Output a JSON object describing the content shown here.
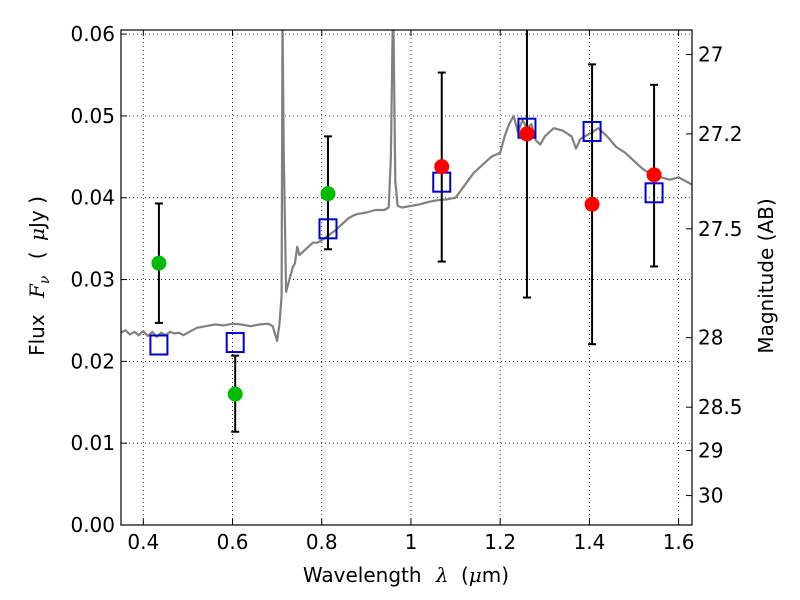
{
  "chart_data": {
    "type": "scatter",
    "xlabel": "Wavelength",
    "xlabel_symbol": "λ",
    "xlabel_unit_open": "(",
    "xlabel_unit_mu": "μ",
    "xlabel_unit_rest": "m)",
    "ylabel": "Flux",
    "ylabel_symbol": "F",
    "ylabel_symbol_sub": "ν",
    "ylabel_unit_open": "(",
    "ylabel_unit_mu": "μ",
    "ylabel_unit_rest": "Jy )",
    "y2label": "Magnitude (AB)",
    "xlim": [
      0.35,
      1.63
    ],
    "ylim": [
      0.0,
      0.0605
    ],
    "xticks": [
      0.4,
      0.6,
      0.8,
      1.0,
      1.2,
      1.4,
      1.6
    ],
    "xtick_labels": [
      "0.4",
      "0.6",
      "0.8",
      "1",
      "1.2",
      "1.4",
      "1.6"
    ],
    "yticks": [
      0.0,
      0.01,
      0.02,
      0.03,
      0.04,
      0.05,
      0.06
    ],
    "ytick_labels": [
      "0.00",
      "0.01",
      "0.02",
      "0.03",
      "0.04",
      "0.05",
      "0.06"
    ],
    "y2_ticks": [
      {
        "label": "27",
        "flux": 0.0575
      },
      {
        "label": "27.2",
        "flux": 0.0478
      },
      {
        "label": "27.5",
        "flux": 0.0362
      },
      {
        "label": "28",
        "flux": 0.0229
      },
      {
        "label": "28.5",
        "flux": 0.0144
      },
      {
        "label": "29",
        "flux": 0.0091
      },
      {
        "label": "30",
        "flux": 0.0036
      }
    ],
    "grid": true,
    "colors": {
      "template": "#808080",
      "green": "#00bb00",
      "red": "#ff0000",
      "model_box": "#0000cc",
      "errorbar": "#000000"
    },
    "series": [
      {
        "kind": "green-points",
        "points": [
          {
            "x": 0.435,
            "y": 0.032,
            "yerr_low": 0.0247,
            "yerr_high": 0.0393
          },
          {
            "x": 0.606,
            "y": 0.016,
            "yerr_low": 0.0114,
            "yerr_high": 0.0207
          },
          {
            "x": 0.814,
            "y": 0.0405,
            "yerr_low": 0.0337,
            "yerr_high": 0.0475
          }
        ]
      },
      {
        "kind": "red-points",
        "points": [
          {
            "x": 1.069,
            "y": 0.0438,
            "yerr_low": 0.0322,
            "yerr_high": 0.0553
          },
          {
            "x": 1.26,
            "y": 0.0478,
            "yerr_low": 0.0278,
            "yerr_high": 0.0605
          },
          {
            "x": 1.406,
            "y": 0.0392,
            "yerr_low": 0.0221,
            "yerr_high": 0.0563
          },
          {
            "x": 1.545,
            "y": 0.0428,
            "yerr_low": 0.0316,
            "yerr_high": 0.0538
          }
        ]
      },
      {
        "kind": "model-boxes",
        "points": [
          {
            "x": 0.435,
            "y": 0.022
          },
          {
            "x": 0.606,
            "y": 0.0223
          },
          {
            "x": 0.814,
            "y": 0.0362
          },
          {
            "x": 1.069,
            "y": 0.0419
          },
          {
            "x": 1.26,
            "y": 0.0485
          },
          {
            "x": 1.406,
            "y": 0.0481
          },
          {
            "x": 1.545,
            "y": 0.0406
          }
        ]
      },
      {
        "kind": "template-spectrum",
        "x": [
          0.35,
          0.36,
          0.37,
          0.38,
          0.39,
          0.4,
          0.41,
          0.42,
          0.43,
          0.44,
          0.45,
          0.46,
          0.47,
          0.48,
          0.49,
          0.5,
          0.52,
          0.54,
          0.56,
          0.58,
          0.6,
          0.62,
          0.64,
          0.66,
          0.68,
          0.69,
          0.7,
          0.705,
          0.71,
          0.712,
          0.715,
          0.72,
          0.725,
          0.73,
          0.735,
          0.74,
          0.745,
          0.75,
          0.76,
          0.77,
          0.78,
          0.79,
          0.8,
          0.81,
          0.82,
          0.83,
          0.84,
          0.85,
          0.86,
          0.87,
          0.88,
          0.9,
          0.92,
          0.94,
          0.95,
          0.955,
          0.96,
          0.965,
          0.97,
          0.98,
          1.0,
          1.02,
          1.04,
          1.06,
          1.08,
          1.1,
          1.12,
          1.14,
          1.16,
          1.18,
          1.2,
          1.21,
          1.22,
          1.23,
          1.24,
          1.25,
          1.26,
          1.27,
          1.28,
          1.29,
          1.3,
          1.32,
          1.34,
          1.36,
          1.37,
          1.38,
          1.4,
          1.42,
          1.44,
          1.46,
          1.48,
          1.5,
          1.52,
          1.54,
          1.56,
          1.58,
          1.6,
          1.63
        ],
        "y": [
          0.0235,
          0.0238,
          0.0233,
          0.0236,
          0.0232,
          0.0237,
          0.0231,
          0.0236,
          0.023,
          0.0235,
          0.0232,
          0.0236,
          0.0234,
          0.0235,
          0.0232,
          0.0235,
          0.0241,
          0.0243,
          0.0245,
          0.0244,
          0.0246,
          0.0245,
          0.0243,
          0.0245,
          0.0246,
          0.0243,
          0.0225,
          0.0245,
          0.028,
          0.062,
          0.045,
          0.0285,
          0.0295,
          0.0305,
          0.0315,
          0.032,
          0.034,
          0.033,
          0.0335,
          0.034,
          0.0345,
          0.0345,
          0.0348,
          0.0352,
          0.0356,
          0.036,
          0.0365,
          0.037,
          0.0375,
          0.0378,
          0.038,
          0.0382,
          0.0385,
          0.0385,
          0.0388,
          0.045,
          0.065,
          0.042,
          0.039,
          0.0388,
          0.039,
          0.0392,
          0.0395,
          0.0397,
          0.0398,
          0.04,
          0.0415,
          0.043,
          0.044,
          0.045,
          0.0455,
          0.0475,
          0.049,
          0.05,
          0.048,
          0.0495,
          0.0485,
          0.049,
          0.047,
          0.0465,
          0.0475,
          0.0485,
          0.0482,
          0.0475,
          0.046,
          0.0472,
          0.0478,
          0.0485,
          0.0475,
          0.0462,
          0.0455,
          0.0445,
          0.0435,
          0.0428,
          0.0425,
          0.0422,
          0.0425,
          0.0416
        ]
      }
    ]
  }
}
